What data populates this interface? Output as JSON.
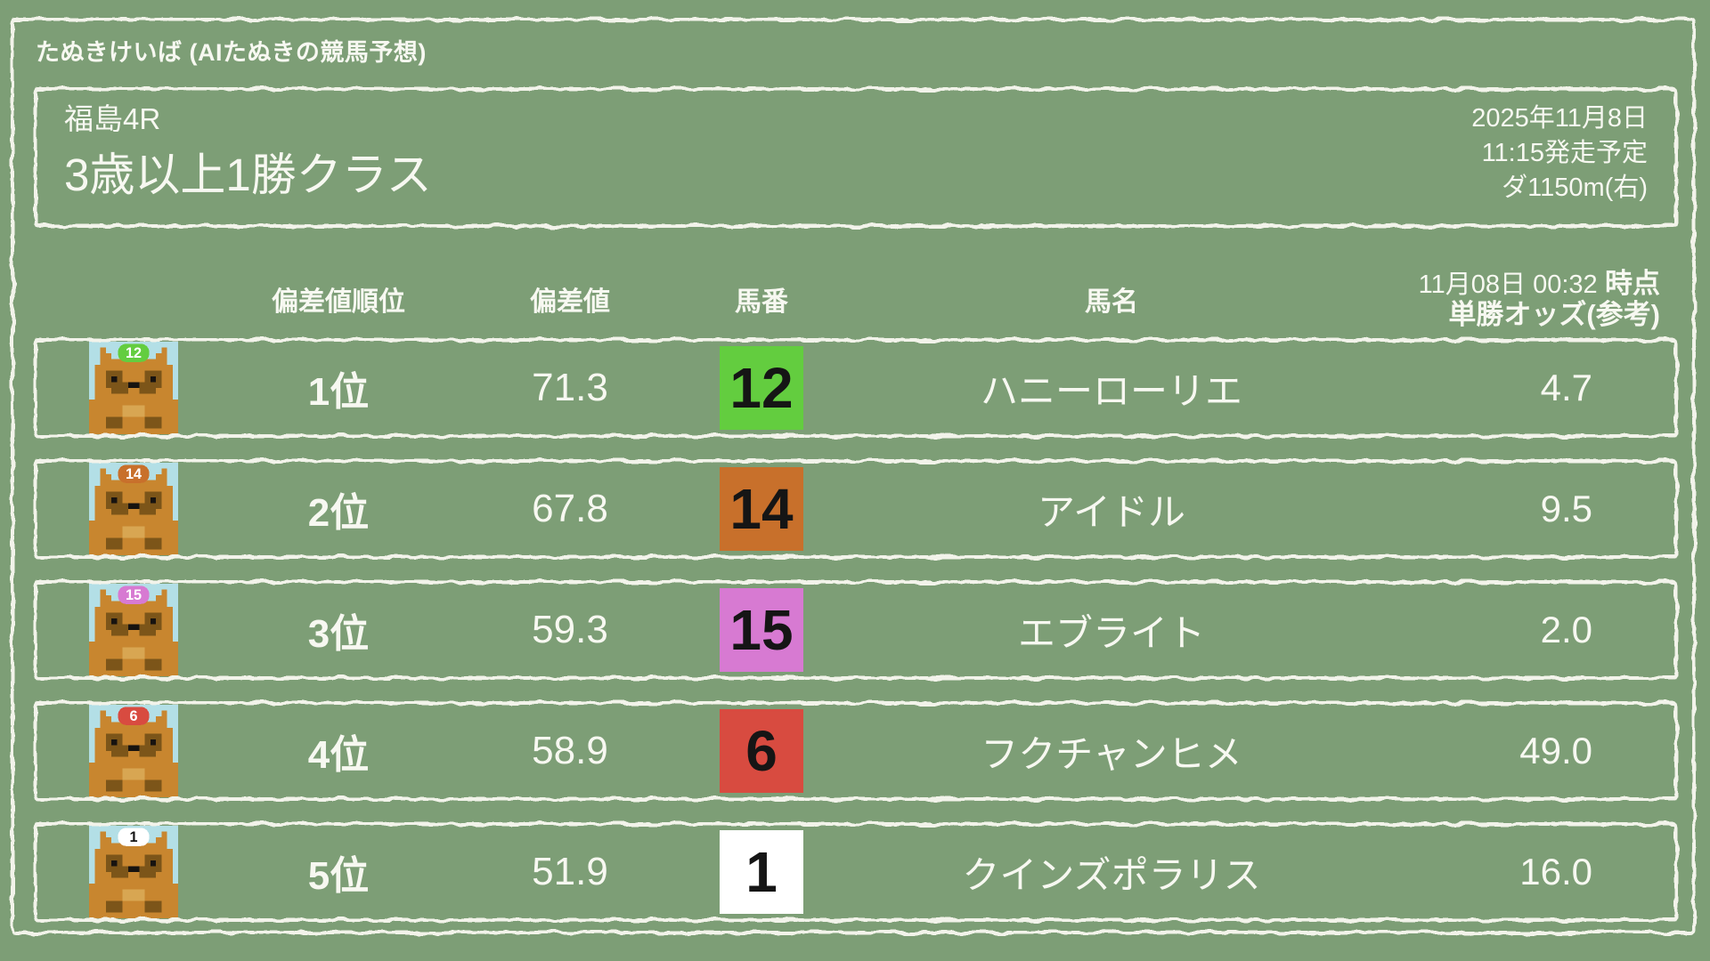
{
  "site": {
    "title": "たぬきけいば (AIたぬきの競馬予想)"
  },
  "race": {
    "venue_race": "福島4R",
    "name": "3歳以上1勝クラス",
    "date": "2025年11月8日",
    "start_time": "11:15発走予定",
    "course": "ダ1150m(右)"
  },
  "table": {
    "headers": {
      "rank": "偏差値順位",
      "deviation": "偏差値",
      "horse_number": "馬番",
      "horse_name": "馬名",
      "odds_time": "11月08日 00:32",
      "odds_time_suffix": "時点",
      "odds_label": "単勝オッズ(参考)"
    },
    "rows": [
      {
        "rank": "1位",
        "deviation": "71.3",
        "number": "12",
        "name": "ハニーローリエ",
        "odds": "4.7",
        "frame_color": "#63cd3f",
        "cap_text_color": "#ffffff"
      },
      {
        "rank": "2位",
        "deviation": "67.8",
        "number": "14",
        "name": "アイドル",
        "odds": "9.5",
        "frame_color": "#c8702b",
        "cap_text_color": "#ffffff"
      },
      {
        "rank": "3位",
        "deviation": "59.3",
        "number": "15",
        "name": "エブライト",
        "odds": "2.0",
        "frame_color": "#d77ad2",
        "cap_text_color": "#ffffff"
      },
      {
        "rank": "4位",
        "deviation": "58.9",
        "number": "6",
        "name": "フクチャンヒメ",
        "odds": "49.0",
        "frame_color": "#d84b40",
        "cap_text_color": "#ffffff"
      },
      {
        "rank": "5位",
        "deviation": "51.9",
        "number": "1",
        "name": "クインズポラリス",
        "odds": "16.0",
        "frame_color": "#ffffff",
        "cap_text_color": "#151515"
      }
    ]
  },
  "colors": {
    "background": "#7d9e76",
    "chalk": "#f2f3ea",
    "text": "#f7f8f1",
    "number_text": "#151515",
    "avatar_bg": "#b3dfe6",
    "avatar_body": "#c8862f",
    "avatar_shade": "#7c5519",
    "avatar_dark": "#171310",
    "avatar_light": "#d8a652"
  }
}
